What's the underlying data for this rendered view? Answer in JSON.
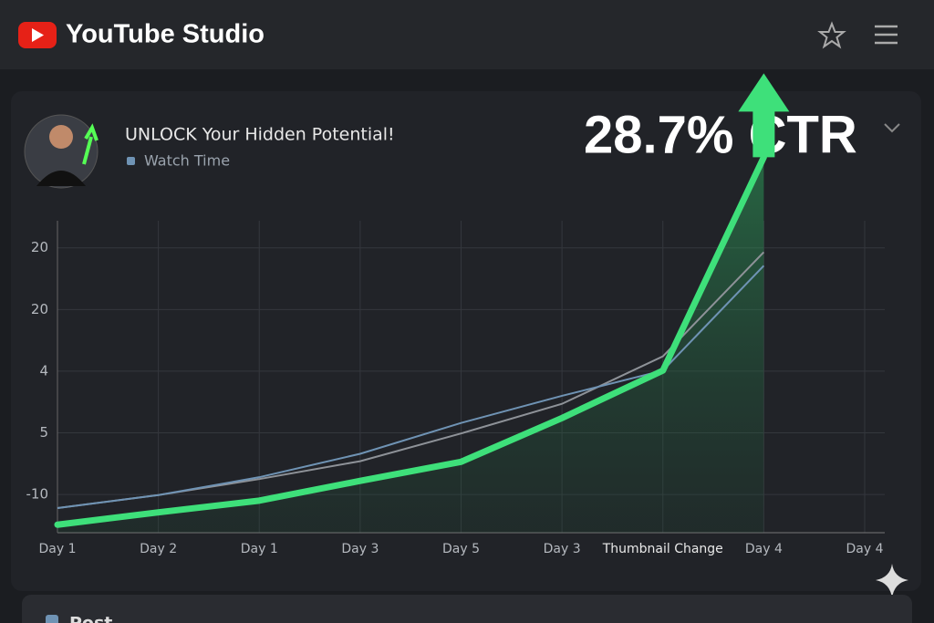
{
  "app": {
    "name": "YouTube Studio"
  },
  "card": {
    "video_title": "UNLOCK Your Hidden Potential!",
    "headline": "28.7% CTR"
  },
  "next_card": {
    "title": "Post"
  },
  "chart_data": {
    "type": "line",
    "categories": [
      "Day 1",
      "Day 2",
      "Day 1",
      "Day 3",
      "Day 5",
      "Day 3",
      "Thumbnail Change",
      "Day 4",
      "Day 4"
    ],
    "series": [
      {
        "color": "#3ee07a",
        "values": [
          -0.49,
          -0.29,
          -0.1,
          0.22,
          0.53,
          1.24,
          2.01,
          5.47,
          null
        ]
      },
      {
        "name": "Watch Time",
        "color": "#6f93b4",
        "values": [
          -0.22,
          -0.01,
          0.28,
          0.66,
          1.16,
          1.6,
          2.01,
          3.71,
          null
        ]
      },
      {
        "color": "#8e9298",
        "values": [
          -0.22,
          -0.01,
          0.25,
          0.54,
          0.99,
          1.47,
          2.24,
          3.93,
          null
        ]
      }
    ],
    "ylim": [
      -0.62,
      4.44
    ],
    "yticks": [
      {
        "value": 0,
        "label": "-10"
      },
      {
        "value": 1,
        "label": "5"
      },
      {
        "value": 2,
        "label": "4"
      },
      {
        "value": 3,
        "label": "20"
      },
      {
        "value": 4,
        "label": "20"
      }
    ],
    "grid": true
  }
}
